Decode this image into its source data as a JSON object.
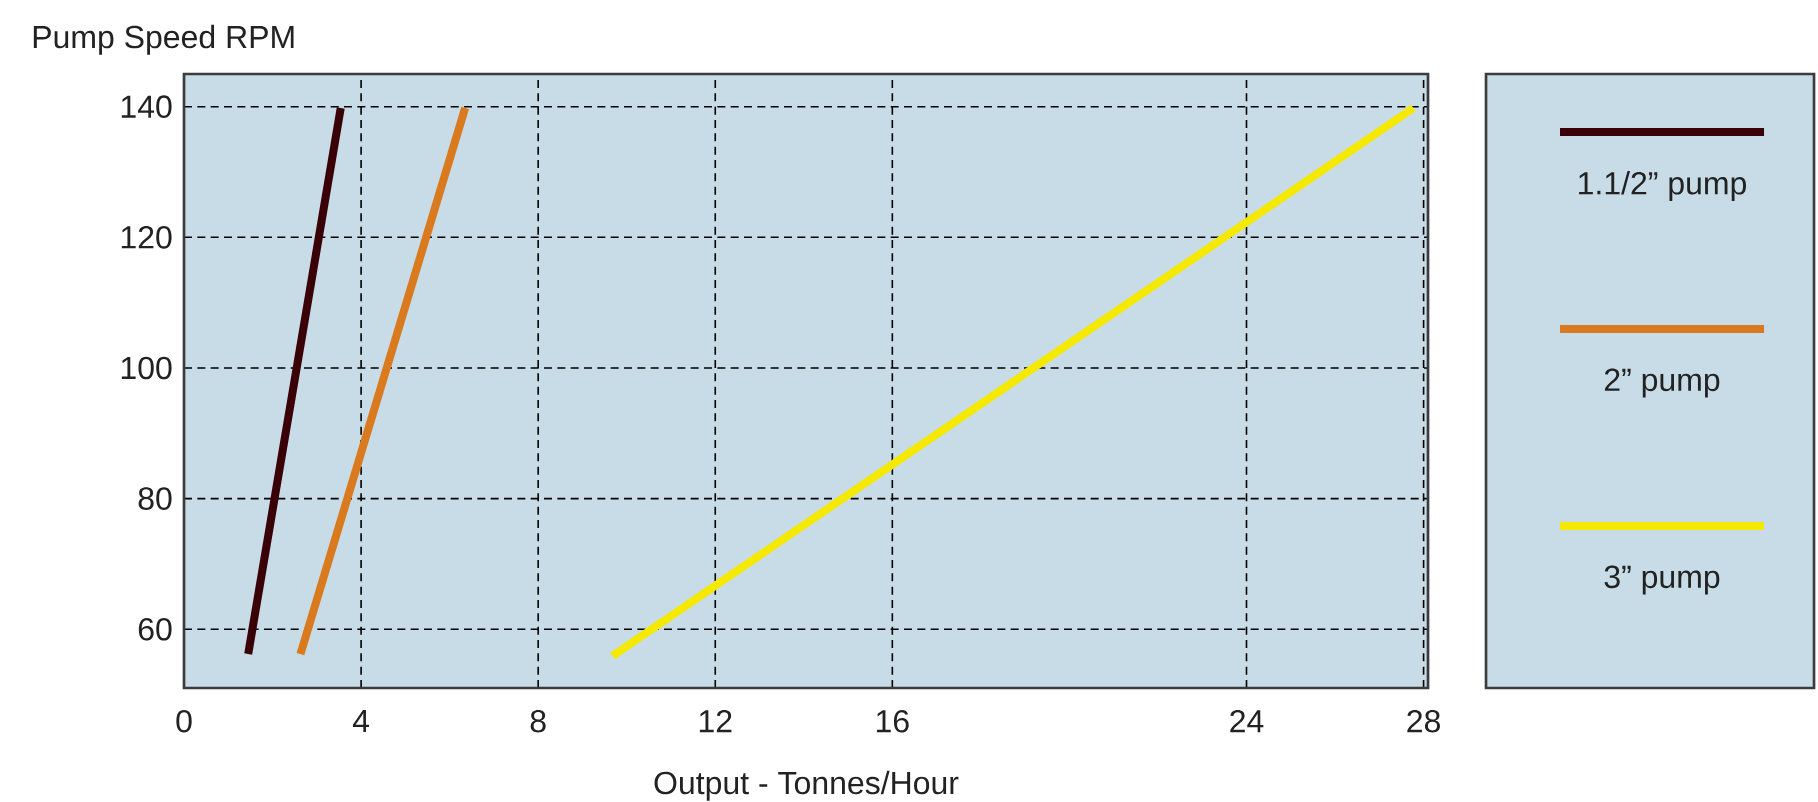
{
  "chart_data": {
    "type": "line",
    "xlabel": "Output - Tonnes/Hour",
    "ylabel": "Pump Speed RPM",
    "xlim": [
      0,
      28.1
    ],
    "ylim": [
      51,
      145
    ],
    "xticks": [
      0,
      4,
      8,
      12,
      16,
      24,
      28
    ],
    "yticks": [
      60,
      80,
      100,
      120,
      140
    ],
    "grid": true,
    "legend": "right",
    "line_style": "solid",
    "marker": "none",
    "series": [
      {
        "name": "1.1/2” pump",
        "color": "#3a0008",
        "x": [
          1.45,
          3.54
        ],
        "values": [
          56.2,
          139.8
        ]
      },
      {
        "name": "2” pump",
        "color": "#d97a1e",
        "x": [
          2.63,
          6.35
        ],
        "values": [
          56.2,
          139.8
        ]
      },
      {
        "name": "3” pump",
        "color": "#f5e900",
        "x": [
          9.68,
          27.77
        ],
        "values": [
          55.9,
          139.8
        ]
      }
    ]
  }
}
